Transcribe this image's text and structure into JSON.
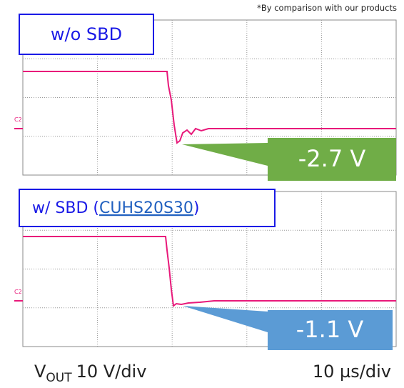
{
  "note": "*By comparison with our products",
  "panels": [
    {
      "label": "w/o SBD",
      "channel": "C2",
      "callout": "-2.7 V"
    },
    {
      "label_prefix": "w/ SBD (",
      "label_link": "CUHS20S30",
      "label_suffix": ")",
      "channel": "C2",
      "callout": "-1.1 V"
    }
  ],
  "footer": {
    "signal": "V",
    "signal_sub": "OUT",
    "vertical_scale": "10 V/div",
    "time_scale": "10 µs/div"
  }
}
